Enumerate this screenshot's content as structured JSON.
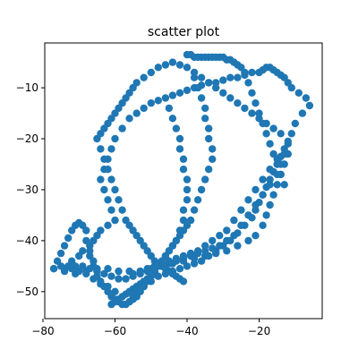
{
  "chart_data": {
    "type": "scatter",
    "title": "scatter plot",
    "xlabel": "",
    "ylabel": "",
    "xlim": [
      -79.5,
      -2.5
    ],
    "ylim": [
      -55.3,
      -1.2
    ],
    "xticks": [
      -80,
      -60,
      -40,
      -20
    ],
    "xtick_labels": [
      "−80",
      "−60",
      "−40",
      "−20"
    ],
    "yticks": [
      -50,
      -40,
      -30,
      -20,
      -10
    ],
    "ytick_labels": [
      "−50",
      "−40",
      "−30",
      "−20",
      "−10"
    ],
    "grid": false,
    "marker_color": "#1f77b4",
    "marker": "circle",
    "series": [
      {
        "x": [
          -77,
          -75,
          -72,
          -70,
          -69,
          -68,
          -68,
          -69,
          -70,
          -71,
          -72,
          -73,
          -74,
          -75,
          -76,
          -77,
          -74,
          -71,
          -68,
          -65,
          -62,
          -59,
          -56,
          -53,
          -50,
          -47,
          -44,
          -41,
          -38,
          -35,
          -32,
          -29,
          -26,
          -23,
          -21,
          -19,
          -18,
          -17,
          -16,
          -15,
          -14,
          -13,
          -12,
          -12,
          -11,
          -10,
          -8,
          -6,
          -7,
          -9,
          -11,
          -12,
          -13,
          -14,
          -15,
          -16,
          -17,
          -18,
          -19,
          -20,
          -22,
          -24,
          -26,
          -28,
          -30,
          -32,
          -34,
          -36,
          -38,
          -40,
          -42,
          -44,
          -46,
          -48,
          -50,
          -52,
          -54,
          -56,
          -58,
          -60,
          -61,
          -62,
          -63,
          -64,
          -63,
          -62,
          -61,
          -60,
          -62,
          -64,
          -65,
          -66,
          -67,
          -67,
          -67,
          -66,
          -66,
          -65,
          -65,
          -64,
          -63,
          -62,
          -61,
          -60,
          -59,
          -58,
          -57,
          -56,
          -55,
          -54,
          -52,
          -50,
          -48,
          -46,
          -44,
          -42,
          -40,
          -38,
          -36,
          -34,
          -32,
          -30,
          -28,
          -26,
          -24,
          -22,
          -21,
          -20,
          -19,
          -18,
          -17,
          -16,
          -15,
          -14,
          -13,
          -12,
          -14,
          -16,
          -18,
          -20,
          -22,
          -24,
          -26,
          -28,
          -30,
          -32,
          -34,
          -36,
          -38,
          -40,
          -42,
          -44,
          -46,
          -48,
          -50,
          -52,
          -54,
          -55,
          -56,
          -57,
          -58,
          -59,
          -60,
          -61,
          -62,
          -63,
          -64,
          -65,
          -64,
          -63,
          -62,
          -61,
          -60,
          -59,
          -58,
          -57,
          -56,
          -55,
          -54,
          -53,
          -52,
          -51,
          -50,
          -49,
          -48,
          -47,
          -46,
          -45,
          -44,
          -43,
          -42,
          -41,
          -40,
          -39,
          -38,
          -37,
          -36,
          -35,
          -34,
          -33,
          -32,
          -31,
          -30,
          -29,
          -28,
          -27,
          -26,
          -25,
          -24,
          -23,
          -22,
          -21,
          -20,
          -19,
          -18,
          -17,
          -16,
          -15,
          -14,
          -13,
          -60,
          -62,
          -64,
          -66,
          -68,
          -70,
          -72,
          -74,
          -73,
          -71,
          -69,
          -67,
          -65,
          -63,
          -61,
          -59,
          -57,
          -55,
          -53,
          -51,
          -49,
          -47,
          -45,
          -43,
          -41,
          -39,
          -37,
          -35,
          -33,
          -31,
          -29,
          -27,
          -25,
          -23,
          -21,
          -19,
          -17,
          -15,
          -14,
          -13,
          -15,
          -17,
          -19,
          -21,
          -23,
          -25,
          -27,
          -29,
          -31,
          -33,
          -35,
          -37,
          -39,
          -41,
          -43,
          -45,
          -47,
          -49,
          -51,
          -53,
          -55,
          -45,
          -44,
          -43,
          -42,
          -42,
          -41,
          -41,
          -40,
          -40,
          -40,
          -41,
          -41,
          -42,
          -43,
          -44,
          -45,
          -46,
          -47,
          -48,
          -49,
          -50,
          -51,
          -52,
          -53,
          -54,
          -55,
          -56,
          -57,
          -58,
          -59,
          -60,
          -61,
          -38,
          -37,
          -36,
          -35,
          -35,
          -34,
          -34,
          -33,
          -33,
          -34,
          -35,
          -36,
          -37,
          -38,
          -39,
          -40,
          -41,
          -42,
          -43,
          -44,
          -45,
          -46,
          -47,
          -48,
          -49,
          -50,
          -51,
          -52,
          -53,
          -54,
          -55,
          -56
        ],
        "y": [
          -45.5,
          -45.0,
          -44.0,
          -43.0,
          -42.0,
          -40.0,
          -38.0,
          -37.0,
          -36.5,
          -37.0,
          -38.0,
          -39.5,
          -41.0,
          -42.5,
          -44.0,
          -45.5,
          -46.0,
          -46.5,
          -46.0,
          -45.5,
          -45.5,
          -46.0,
          -46.0,
          -46.0,
          -45.5,
          -45.0,
          -44.5,
          -44.0,
          -43.5,
          -43.0,
          -42.5,
          -42.0,
          -41.0,
          -40.0,
          -39.0,
          -37.0,
          -35.0,
          -33.0,
          -31.0,
          -29.0,
          -27.0,
          -25.0,
          -23.0,
          -21.0,
          -19.0,
          -17.0,
          -15.0,
          -13.5,
          -12.0,
          -11.0,
          -10.0,
          -9.0,
          -8.0,
          -7.5,
          -7.0,
          -6.5,
          -6.0,
          -6.0,
          -6.5,
          -7.0,
          -7.0,
          -7.5,
          -8.0,
          -8.0,
          -8.5,
          -9.0,
          -9.0,
          -9.5,
          -10.0,
          -10.5,
          -11.0,
          -11.5,
          -12.0,
          -12.5,
          -13.0,
          -14.0,
          -15.0,
          -16.0,
          -18.0,
          -20.0,
          -22.0,
          -24.0,
          -26.0,
          -28.0,
          -30.0,
          -32.0,
          -34.0,
          -36.0,
          -37.0,
          -38.0,
          -39.0,
          -40.0,
          -41.0,
          -42.0,
          -43.0,
          -44.0,
          -45.0,
          -46.0,
          -47.0,
          -48.0,
          -49.0,
          -50.0,
          -51.0,
          -51.5,
          -52.0,
          -52.5,
          -52.5,
          -52.0,
          -51.0,
          -50.0,
          -49.0,
          -48.0,
          -47.0,
          -46.5,
          -46.0,
          -45.5,
          -45.0,
          -44.5,
          -44.0,
          -43.0,
          -42.0,
          -41.0,
          -40.0,
          -38.5,
          -37.0,
          -35.5,
          -34.0,
          -32.5,
          -31.0,
          -29.5,
          -28.0,
          -26.5,
          -25.0,
          -23.5,
          -22.0,
          -20.5,
          -19.0,
          -18.0,
          -17.0,
          -16.0,
          -15.0,
          -14.0,
          -13.0,
          -12.0,
          -11.0,
          -10.0,
          -9.0,
          -8.0,
          -7.0,
          -6.0,
          -5.5,
          -5.0,
          -5.5,
          -6.0,
          -7.0,
          -8.0,
          -9.0,
          -10.0,
          -11.0,
          -12.0,
          -13.0,
          -14.0,
          -15.0,
          -16.0,
          -17.0,
          -18.0,
          -19.0,
          -20.0,
          -22.0,
          -24.0,
          -26.0,
          -28.0,
          -30.0,
          -32.0,
          -34.0,
          -36.0,
          -37.0,
          -38.0,
          -39.0,
          -40.0,
          -41.0,
          -42.0,
          -43.0,
          -44.0,
          -44.5,
          -45.0,
          -45.5,
          -46.0,
          -46.5,
          -47.0,
          -47.5,
          -48.0,
          -3.5,
          -3.5,
          -4.0,
          -4.0,
          -4.0,
          -4.0,
          -4.0,
          -4.0,
          -4.0,
          -4.0,
          -4.0,
          -4.5,
          -4.5,
          -5.0,
          -5.5,
          -6.0,
          -7.0,
          -9.0,
          -11.0,
          -13.0,
          -15.0,
          -17.0,
          -19.0,
          -21.0,
          -23.0,
          -25.0,
          -27.0,
          -29.0,
          -50.0,
          -49.0,
          -48.5,
          -47.5,
          -46.5,
          -46.0,
          -45.5,
          -45.5,
          -45.0,
          -45.0,
          -45.0,
          -45.5,
          -46.0,
          -46.5,
          -47.0,
          -47.5,
          -47.5,
          -47.0,
          -46.5,
          -46.0,
          -45.5,
          -45.0,
          -44.5,
          -44.0,
          -43.5,
          -43.0,
          -42.5,
          -42.0,
          -41.5,
          -41.0,
          -40.0,
          -39.0,
          -37.0,
          -35.0,
          -33.0,
          -31.0,
          -29.0,
          -27.0,
          -25.0,
          -23.0,
          -24.0,
          -26.0,
          -28.0,
          -30.0,
          -32.0,
          -34.0,
          -36.0,
          -38.0,
          -39.0,
          -40.0,
          -41.0,
          -42.0,
          -42.5,
          -43.0,
          -43.5,
          -44.0,
          -44.5,
          -45.0,
          -45.5,
          -46.0,
          -46.5,
          -14.0,
          -16.0,
          -18.0,
          -20.0,
          -22.0,
          -24.0,
          -26.0,
          -28.0,
          -30.0,
          -32.0,
          -34.0,
          -36.0,
          -38.0,
          -40.0,
          -41.0,
          -42.0,
          -43.0,
          -44.0,
          -45.0,
          -46.0,
          -47.0,
          -47.5,
          -48.0,
          -48.5,
          -49.0,
          -49.5,
          -50.0,
          -50.5,
          -51.0,
          -51.5,
          -52.0,
          -52.5,
          -8.0,
          -10.0,
          -12.0,
          -14.0,
          -16.0,
          -18.0,
          -20.0,
          -22.0,
          -24.0,
          -26.0,
          -28.0,
          -30.0,
          -32.0,
          -34.0,
          -36.0,
          -37.0,
          -38.0,
          -39.0,
          -40.0,
          -41.0,
          -42.0,
          -43.0,
          -44.0,
          -45.0,
          -46.0,
          -47.0,
          -48.0,
          -49.0,
          -50.0,
          -51.0,
          -51.5,
          -52.0
        ]
      }
    ]
  }
}
